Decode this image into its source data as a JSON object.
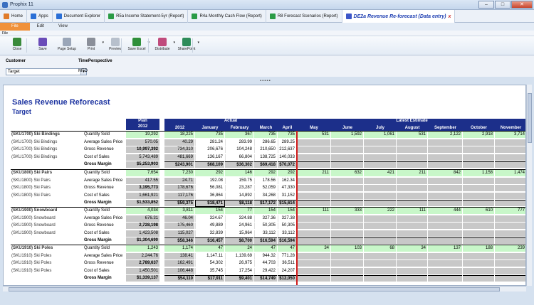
{
  "window": {
    "title": "Prophix 11"
  },
  "tabs": [
    {
      "label": "Home",
      "color": "#e07b2a"
    },
    {
      "label": "Apps",
      "color": "#2b6fd6"
    },
    {
      "label": "Document Explorer",
      "color": "#2b6fd6"
    },
    {
      "label": "R5a Income Statement-5yr (Report)",
      "color": "#2a9b46"
    },
    {
      "label": "R4a Monthly Cash Flow (Report)",
      "color": "#2a9b46"
    },
    {
      "label": "R8 Forecast Scenarios (Report)",
      "color": "#2a9b46"
    },
    {
      "label": "DE2a Revenue Re-forecast (Data entry)",
      "color": "#3c56c8",
      "close": "x"
    }
  ],
  "menu": [
    "File",
    "Edit",
    "View"
  ],
  "subtitle": "File",
  "ribbon": [
    {
      "label": "Close",
      "color": "#3a8a3a"
    },
    {
      "label": "Save",
      "color": "#6a4cb8"
    },
    {
      "label": "Page Setup",
      "color": "#9aa6b8"
    },
    {
      "label": "Print",
      "color": "#8a8f99",
      "drop": "▾"
    },
    {
      "label": "Preview",
      "color": "#b7c0cc"
    },
    {
      "label": "Save Excel",
      "color": "#2f8f3a",
      "drop": "▾"
    },
    {
      "label": "Distribute",
      "color": "#c04b7c",
      "drop": "▾"
    },
    {
      "label": "SharePoint",
      "color": "#2e8c5a",
      "drop": "▾"
    }
  ],
  "filters": {
    "customer_label": "Customer",
    "time_label": "TimePerspective",
    "customer_value": "Target",
    "time_value": "MTD"
  },
  "handle": "▪▪▪▪▪",
  "report": {
    "title": "Sales Revenue Reforecast",
    "subtitle": "Target",
    "plan_header": "Plan",
    "plan_year": "2012",
    "actual_header": "Actual",
    "estimate_header": "Latest Estimate",
    "months": [
      "2012",
      "January",
      "February",
      "March",
      "April",
      "May",
      "June",
      "July",
      "August",
      "September",
      "October",
      "November"
    ],
    "groups": [
      {
        "rows": [
          {
            "sku": "(SKU1700) Ski Bindings",
            "metric": "Quantity Sold",
            "plan": "19,292",
            "vals": [
              "18,225",
              "735",
              "367",
              "735",
              "735",
              "531",
              "1,592",
              "1,061",
              "531",
              "2,122",
              "2,918",
              "3,714"
            ]
          },
          {
            "sku": "(SKU1700) Ski Bindings",
            "metric": "Average Sales Price",
            "plan": "570.05",
            "vals": [
              "40.29",
              "281.24",
              "283.99",
              "286.65",
              "289.25"
            ]
          },
          {
            "sku": "(SKU1700) Ski Bindings",
            "metric": "Gross Revenue",
            "plan": "10,997,392",
            "vals": [
              "734,310",
              "206,676",
              "104,248",
              "210,650",
              "212,637"
            ]
          },
          {
            "sku": "(SKU1700) Ski Bindings",
            "metric": "Cost of Sales",
            "plan": "5,743,489",
            "vals": [
              "481,669",
              "136,167",
              "66,804",
              "138,725",
              "140,033"
            ]
          },
          {
            "sku": "",
            "metric": "Gross Margin",
            "plan": "$5,253,903",
            "vals": [
              "$243,901",
              "$68,109",
              "$36,302",
              "$69,418",
              "$70,072"
            ]
          }
        ]
      },
      {
        "rows": [
          {
            "sku": "(SKU1800) Ski Pairs",
            "metric": "Quantity Sold",
            "plan": "7,654",
            "vals": [
              "7,230",
              "292",
              "146",
              "292",
              "292",
              "211",
              "632",
              "421",
              "211",
              "842",
              "1,158",
              "1,474"
            ]
          },
          {
            "sku": "(SKU1800) Ski Pairs",
            "metric": "Average Sales Price",
            "plan": "417.55",
            "vals": [
              "24.71",
              "192.08",
              "159.75",
              "178.56",
              "162.34"
            ]
          },
          {
            "sku": "(SKU1800) Ski Pairs",
            "metric": "Gross Revenue",
            "plan": "3,195,773",
            "vals": [
              "178,676",
              "56,081",
              "23,287",
              "52,059",
              "47,330"
            ]
          },
          {
            "sku": "(SKU1800) Ski Pairs",
            "metric": "Cost of Sales",
            "plan": "1,661,921",
            "vals": [
              "117,176",
              "36,864",
              "14,892",
              "34,268",
              "31,152"
            ]
          },
          {
            "sku": "",
            "metric": "Gross Margin",
            "plan": "$1,533,852",
            "vals": [
              "$59,375",
              "$18,471",
              "$8,118",
              "$17,172",
              "$15,614"
            ]
          }
        ]
      },
      {
        "rows": [
          {
            "sku": "(SKU1900) Snowboard",
            "metric": "Quantity Sold",
            "plan": "4,034",
            "vals": [
              "3,811",
              "154",
              "77",
              "154",
              "154",
              "111",
              "333",
              "222",
              "111",
              "444",
              "610",
              "777"
            ]
          },
          {
            "sku": "(SKU1900) Snowboard",
            "metric": "Average Sales Price",
            "plan": "676.31",
            "vals": [
              "46.04",
              "324.67",
              "324.88",
              "327.36",
              "327.38"
            ]
          },
          {
            "sku": "(SKU1900) Snowboard",
            "metric": "Gross Revenue",
            "plan": "2,728,198",
            "vals": [
              "175,460",
              "49,889",
              "24,961",
              "50,305",
              "50,305"
            ]
          },
          {
            "sku": "(SKU1900) Snowboard",
            "metric": "Cost of Sales",
            "plan": "1,423,508",
            "vals": [
              "115,027",
              "32,839",
              "15,964",
              "33,112",
              "33,112"
            ]
          },
          {
            "sku": "",
            "metric": "Gross Margin",
            "plan": "$1,304,690",
            "vals": [
              "$58,346",
              "$16,457",
              "$8,700",
              "$16,594",
              "$16,594"
            ]
          }
        ]
      },
      {
        "rows": [
          {
            "sku": "(SKU1910) Ski Poles",
            "metric": "Quantity Sold",
            "plan": "1,243",
            "vals": [
              "1,174",
              "47",
              "24",
              "47",
              "47",
              "34",
              "103",
              "68",
              "34",
              "137",
              "188",
              "239"
            ]
          },
          {
            "sku": "(SKU1910) Ski Poles",
            "metric": "Average Sales Price",
            "plan": "2,244.76",
            "vals": [
              "138.41",
              "1,147.11",
              "1,139.69",
              "944.32",
              "771.28"
            ]
          },
          {
            "sku": "(SKU1910) Ski Poles",
            "metric": "Gross Revenue",
            "plan": "2,789,637",
            "vals": [
              "162,491",
              "54,302",
              "26,975",
              "44,703",
              "36,511"
            ]
          },
          {
            "sku": "(SKU1910) Ski Poles",
            "metric": "Cost of Sales",
            "plan": "1,450,501",
            "vals": [
              "106,448",
              "35,745",
              "17,254",
              "29,422",
              "24,207"
            ]
          },
          {
            "sku": "",
            "metric": "Gross Margin",
            "plan": "$1,339,137",
            "vals": [
              "$54,110",
              "$17,911",
              "$9,401",
              "$14,749",
              "$12,050"
            ]
          }
        ]
      }
    ]
  }
}
